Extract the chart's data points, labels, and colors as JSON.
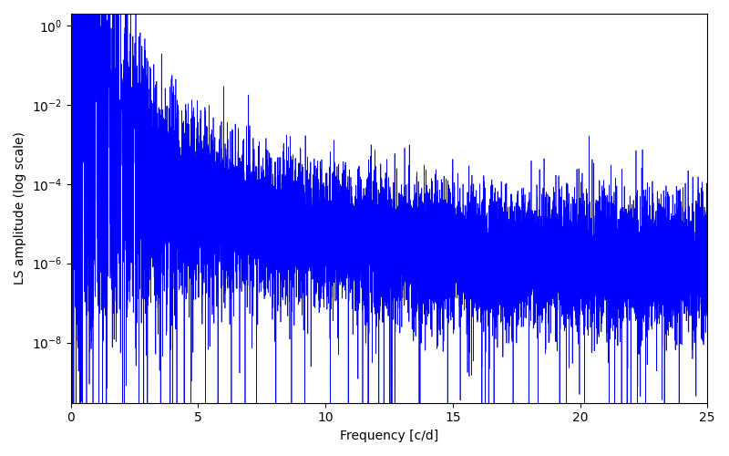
{
  "line_color": "#0000ff",
  "xlabel": "Frequency [c/d]",
  "ylabel": "LS amplitude (log scale)",
  "xmin": 0,
  "xmax": 25,
  "ymin": 3e-10,
  "ymax": 2.0,
  "figsize": [
    8.0,
    5.0
  ],
  "dpi": 100,
  "yscale": "log",
  "linewidth": 0.5,
  "seed": 12345,
  "n_points": 15000
}
